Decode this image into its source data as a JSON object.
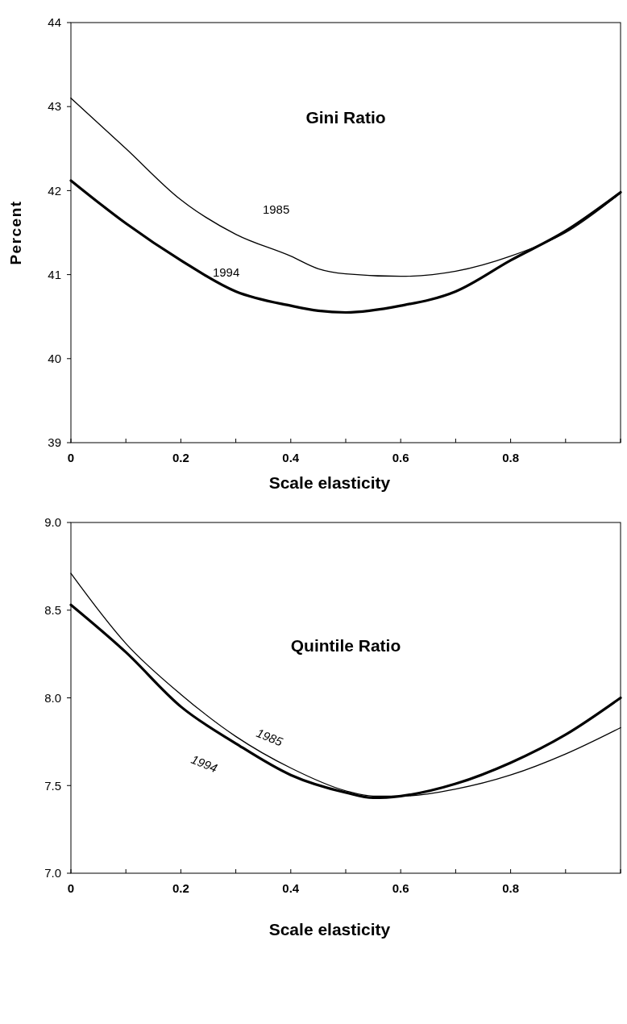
{
  "chart_data": [
    {
      "type": "line",
      "title": "Gini Ratio",
      "xlabel": "Scale elasticity",
      "ylabel": "Percent",
      "xlim": [
        0,
        1
      ],
      "ylim": [
        39,
        44
      ],
      "xticks": [
        0,
        {
          "value": 0.1,
          "label": null
        },
        0.2,
        {
          "value": 0.3,
          "label": null
        },
        0.4,
        {
          "value": 0.5,
          "label": null
        },
        0.6,
        {
          "value": 0.7,
          "label": null
        },
        0.8,
        {
          "value": 0.9,
          "label": null
        },
        {
          "value": 1,
          "label": null
        }
      ],
      "yticks": [
        39,
        40,
        41,
        42,
        43,
        44
      ],
      "grid": false,
      "legend": false,
      "marker": "none",
      "line_style": "solid",
      "x": [
        0,
        0.1,
        0.2,
        0.3,
        0.4,
        0.45,
        0.5,
        0.6,
        0.7,
        0.8,
        0.9,
        1
      ],
      "series": [
        {
          "name": "1985",
          "color": "#000000",
          "values": [
            43.1,
            42.5,
            41.89,
            41.48,
            41.22,
            41.07,
            41.01,
            40.98,
            41.04,
            41.22,
            41.5,
            41.97
          ]
        },
        {
          "name": "1994",
          "color": "#000000",
          "values": [
            42.12,
            41.61,
            41.17,
            40.8,
            40.63,
            40.57,
            40.55,
            40.63,
            40.8,
            41.17,
            41.52,
            41.98
          ]
        }
      ]
    },
    {
      "type": "line",
      "title": "Quintile Ratio",
      "xlabel": "Scale elasticity",
      "xlim": [
        0,
        1
      ],
      "ylim": [
        7,
        9
      ],
      "xticks": [
        0,
        {
          "value": 0.1,
          "label": null
        },
        0.2,
        {
          "value": 0.3,
          "label": null
        },
        0.4,
        {
          "value": 0.5,
          "label": null
        },
        0.6,
        {
          "value": 0.7,
          "label": null
        },
        0.8,
        {
          "value": 0.9,
          "label": null
        },
        {
          "value": 1,
          "label": null
        }
      ],
      "yticks": [
        {
          "value": 7,
          "label": "7.0"
        },
        {
          "value": 7.5,
          "label": "7.5"
        },
        {
          "value": 8,
          "label": "8.0"
        },
        {
          "value": 8.5,
          "label": "8.5"
        },
        {
          "value": 9,
          "label": "9.0"
        }
      ],
      "grid": false,
      "legend": false,
      "marker": "none",
      "line_style": "solid",
      "x": [
        0,
        0.1,
        0.2,
        0.3,
        0.4,
        0.5,
        0.55,
        0.6,
        0.7,
        0.8,
        0.9,
        1
      ],
      "series": [
        {
          "name": "1985",
          "color": "#000000",
          "values": [
            8.71,
            8.31,
            8.02,
            7.78,
            7.6,
            7.47,
            7.44,
            7.44,
            7.48,
            7.56,
            7.68,
            7.83
          ]
        },
        {
          "name": "1994",
          "color": "#000000",
          "values": [
            8.53,
            8.26,
            7.95,
            7.74,
            7.56,
            7.46,
            7.43,
            7.44,
            7.51,
            7.63,
            7.79,
            8.0
          ]
        }
      ]
    }
  ]
}
